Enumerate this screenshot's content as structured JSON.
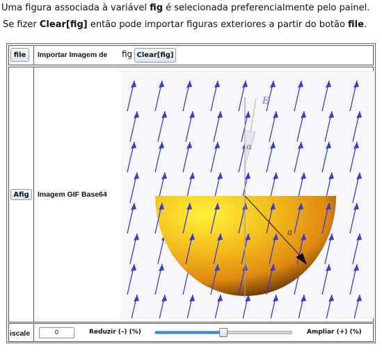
{
  "intro": {
    "line1_pre": "Uma figura associada à variável ",
    "line1_bold": "fig",
    "line1_post": " é selecionada preferencialmente pelo painel.",
    "line2_pre": "Se fizer ",
    "line2_bold1": "Clear[fig]",
    "line2_mid": " então pode importar figuras exteriores a partir do botão ",
    "line2_bold2": "file",
    "line2_post": "."
  },
  "row1": {
    "file_button": "file",
    "import_label": "Importar Imagem de",
    "fig_text": "fig",
    "clear_button": "Clear[fig]"
  },
  "row2": {
    "afig_button": "Afig",
    "gif_label": "Imagem GIF Base64",
    "figure_labels": {
      "vector": "E",
      "angle": "α",
      "radius": "a"
    }
  },
  "row3": {
    "iscale_label": "iscale",
    "iscale_value": "0",
    "reduce_label": "Reduzir (–) (%)",
    "enlarge_label": "Ampliar (+) (%)",
    "slider_fraction": 0.5
  },
  "colors": {
    "field_arrow": "#3a3ad0",
    "hemisphere_light": "#fff23a",
    "hemisphere_mid": "#f0a018",
    "hemisphere_dark": "#3a1800",
    "slider_fill": "#2f8fd8",
    "panel_bg": "#ededed"
  }
}
